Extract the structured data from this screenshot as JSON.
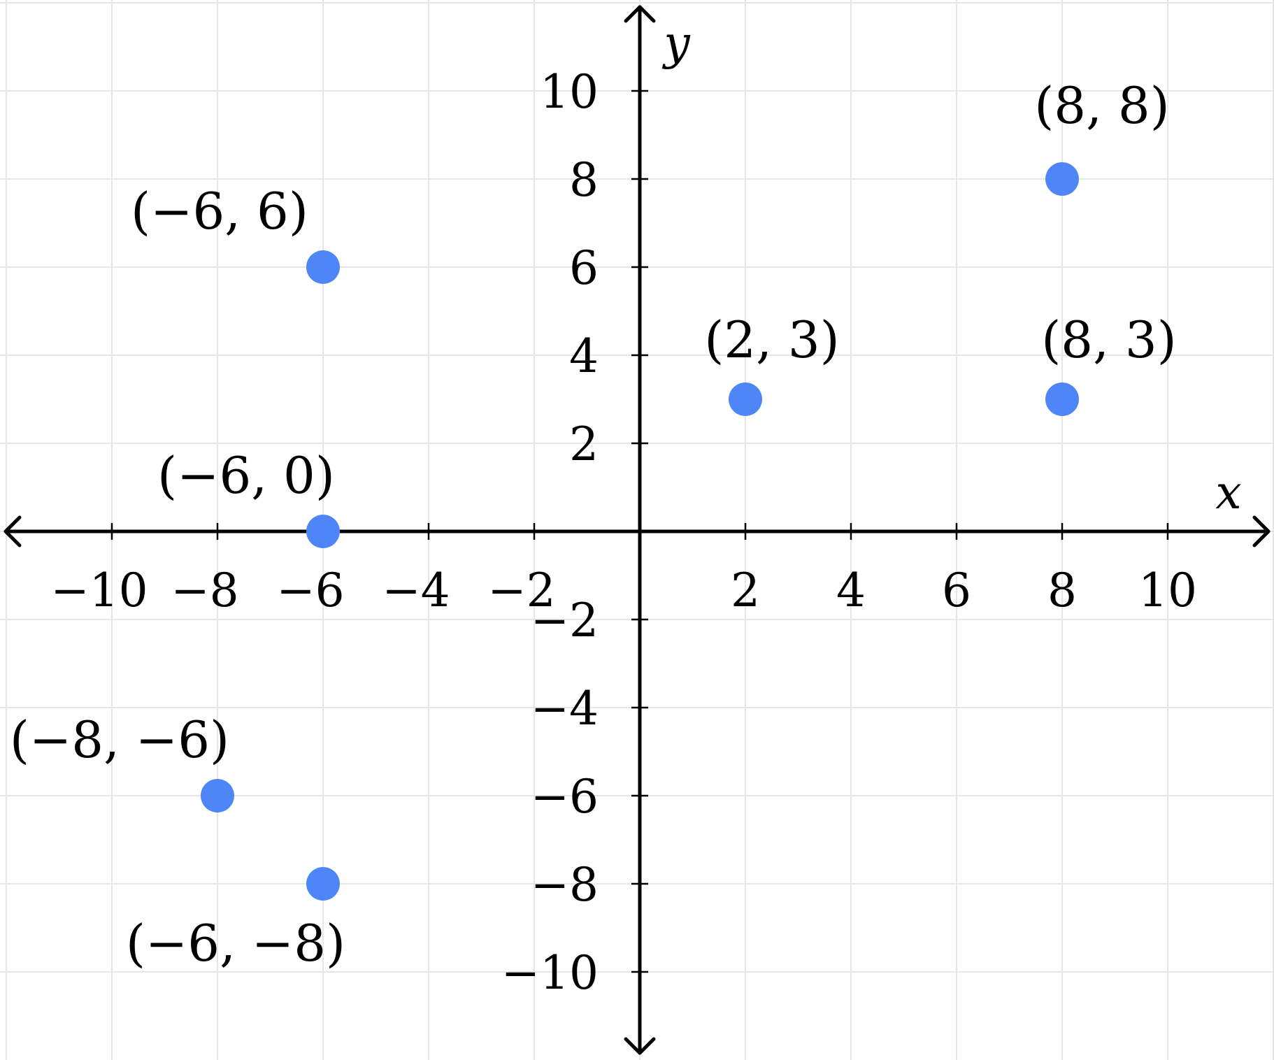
{
  "chart_data": {
    "type": "scatter",
    "title": "",
    "xlabel": "x",
    "ylabel": "y",
    "xlim": [
      -12,
      12
    ],
    "ylim": [
      -11.5,
      11.5
    ],
    "grid": true,
    "x_ticks": [
      -10,
      -8,
      -6,
      -4,
      -2,
      2,
      4,
      6,
      8,
      10
    ],
    "y_ticks": [
      -10,
      -8,
      -6,
      -4,
      -2,
      2,
      4,
      6,
      8,
      10
    ],
    "x_tick_labels": [
      "−10",
      "−8",
      "−6",
      "−4",
      "−2",
      "2",
      "4",
      "6",
      "8",
      "10"
    ],
    "y_tick_labels": [
      "−10",
      "−8",
      "−6",
      "−4",
      "−2",
      "2",
      "4",
      "6",
      "8",
      "10"
    ],
    "point_color": "#4f86f7",
    "points": [
      {
        "x": -6,
        "y": 6,
        "label": "(−6, 6)"
      },
      {
        "x": -6,
        "y": 0,
        "label": "(−6, 0)"
      },
      {
        "x": -8,
        "y": -6,
        "label": "(−8, −6)"
      },
      {
        "x": -6,
        "y": -8,
        "label": "(−6, −8)"
      },
      {
        "x": 2,
        "y": 3,
        "label": "(2, 3)"
      },
      {
        "x": 8,
        "y": 3,
        "label": "(8, 3)"
      },
      {
        "x": 8,
        "y": 8,
        "label": "(8, 8)"
      }
    ]
  }
}
